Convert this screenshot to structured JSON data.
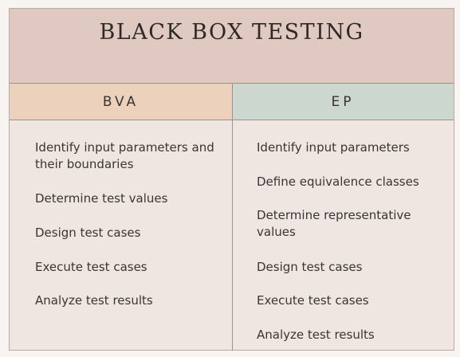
{
  "title": "BLACK BOX TESTING",
  "columns": [
    {
      "heading": "BVA",
      "items": [
        "Identify input parameters and their boundaries",
        "Determine test values",
        "Design test cases",
        "Execute test cases",
        "Analyze test results"
      ]
    },
    {
      "heading": "EP",
      "items": [
        "Identify input parameters",
        "Define equivalence classes",
        "Determine representative values",
        "Design test cases",
        "Execute test cases",
        "Analyze test results"
      ]
    }
  ],
  "colors": {
    "title_band": "#dfc9c0",
    "bva_header": "#ecd1bd",
    "ep_header": "#ccd8cf",
    "body": "#efe5e1"
  }
}
